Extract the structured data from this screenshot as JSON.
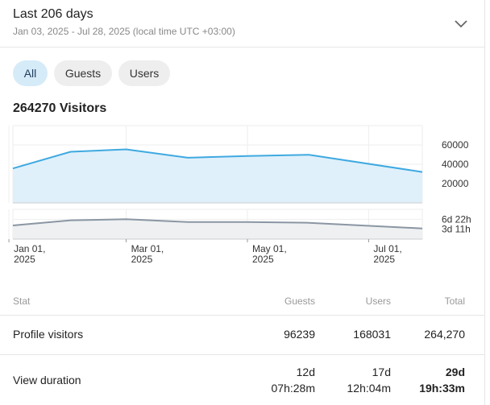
{
  "header": {
    "title": "Last 206 days",
    "subtitle": "Jan 03, 2025 - Jul 28, 2025 (local time UTC +03:00)"
  },
  "filters": [
    "All",
    "Guests",
    "Users"
  ],
  "active_filter": "All",
  "visitors_label": "264270 Visitors",
  "chart_data": {
    "type": "area",
    "x_ticks": [
      [
        "Jan 01,",
        "2025"
      ],
      [
        "Mar 01,",
        "2025"
      ],
      [
        "May 01,",
        "2025"
      ],
      [
        "Jul 01,",
        "2025"
      ]
    ],
    "x": [
      "2025-01-03",
      "2025-02-01",
      "2025-03-01",
      "2025-04-01",
      "2025-05-01",
      "2025-06-01",
      "2025-07-28"
    ],
    "series": [
      {
        "values": [
          29000,
          43000,
          45000,
          38000,
          39500,
          40500,
          26000
        ],
        "color": "#3fa9e0",
        "ylim": [
          0,
          65000
        ],
        "ticks": [
          "60000",
          "40000",
          "20000"
        ]
      },
      {
        "values": [
          5.5,
          7.6,
          8.0,
          6.9,
          6.9,
          6.6,
          4.3
        ],
        "color": "#8a96a3",
        "unit": "days",
        "ylim": [
          0,
          12
        ],
        "ticks": [
          "6d 22h",
          "3d 11h"
        ]
      }
    ],
    "grid": true
  },
  "stats": {
    "headers": {
      "stat": "Stat",
      "guests": "Guests",
      "users": "Users",
      "total": "Total"
    },
    "rows": [
      {
        "label": "Profile visitors",
        "guests": [
          "96239"
        ],
        "users": [
          "168031"
        ],
        "total": [
          "264,270"
        ]
      },
      {
        "label": "View duration",
        "guests": [
          "12d",
          "07h:28m"
        ],
        "users": [
          "17d",
          "12h:04m"
        ],
        "total": [
          "29d",
          "19h:33m"
        ]
      }
    ]
  },
  "colors": {
    "accent": "#3fa9e0",
    "pill_active": "#d6ebf8"
  }
}
